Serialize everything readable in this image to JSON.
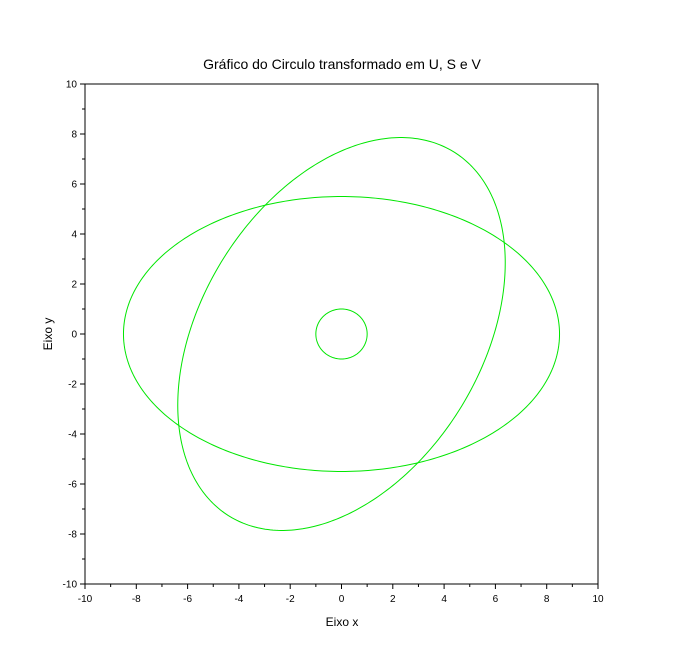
{
  "chart_data": {
    "type": "line",
    "title": "Gráfico do Circulo transformado em U, S e V",
    "xlabel": "Eixo x",
    "ylabel": "Eixo y",
    "xlim": [
      -10,
      10
    ],
    "ylim": [
      -10,
      10
    ],
    "xticks": [
      -10,
      -8,
      -6,
      -4,
      -2,
      0,
      2,
      4,
      6,
      8,
      10
    ],
    "yticks": [
      -10,
      -8,
      -6,
      -4,
      -2,
      0,
      2,
      4,
      6,
      8,
      10
    ],
    "grid": false,
    "line_color": "#00e600",
    "series": [
      {
        "kind": "ellipse",
        "center": [
          0,
          0
        ],
        "semi_axes": [
          1,
          1
        ],
        "rotation_deg": 0
      },
      {
        "kind": "ellipse",
        "center": [
          0,
          0
        ],
        "semi_axes": [
          8.5,
          5.5
        ],
        "rotation_deg": 0
      },
      {
        "kind": "ellipse",
        "center": [
          0,
          0
        ],
        "semi_axes": [
          8.5,
          5.5
        ],
        "rotation_deg": 60
      }
    ]
  }
}
